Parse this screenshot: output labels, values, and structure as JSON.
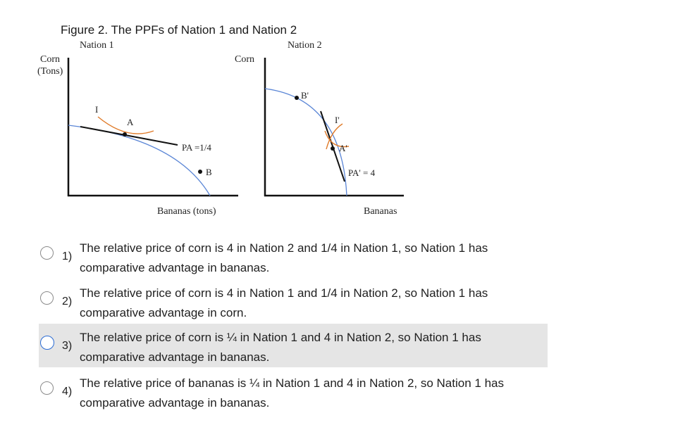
{
  "figure": {
    "title": "Figure 2. The PPFs of Nation 1 and Nation 2",
    "nation1": {
      "heading": "Nation 1",
      "y_label_line1": "Corn",
      "y_label_line2": "(Tons)",
      "x_label": "Bananas (tons)",
      "indiff_label": "I",
      "point_a": "A",
      "point_b": "B",
      "price_label": "PA =1/4"
    },
    "nation2": {
      "heading": "Nation 2",
      "y_label": "Corn",
      "x_label": "Bananas",
      "indiff_label": "I'",
      "point_a": "A'",
      "point_b": "B'",
      "price_label": "PA' = 4"
    },
    "colors": {
      "ppf": "#5b86d6",
      "indifference": "#e07b2a",
      "axes": "#111111"
    }
  },
  "options": [
    {
      "number": "1)",
      "text": "The relative price of corn is 4 in Nation 2 and 1/4 in Nation 1, so Nation 1 has comparative advantage in bananas.",
      "selected": false,
      "highlighted": false
    },
    {
      "number": "2)",
      "text": "The relative price of corn is 4 in Nation 1 and 1/4 in Nation 2, so Nation 1 has comparative advantage in corn.",
      "selected": false,
      "highlighted": false
    },
    {
      "number": "3)",
      "text": "The relative price of corn is ¼ in Nation 1 and 4 in Nation 2, so Nation 1 has comparative advantage in bananas.",
      "selected": false,
      "highlighted": true
    },
    {
      "number": "4)",
      "text": "The relative price of bananas is ¼ in Nation 1 and 4 in Nation 2, so Nation 1 has comparative advantage in bananas.",
      "selected": false,
      "highlighted": false
    }
  ]
}
